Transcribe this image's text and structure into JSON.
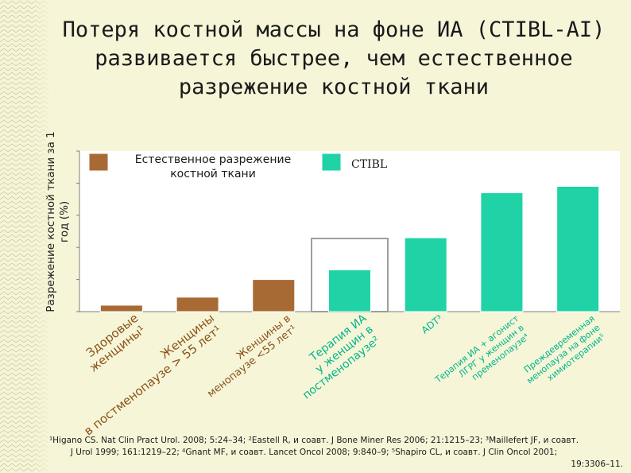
{
  "title_lines": [
    "Потеря костной массы на фоне ИА (CTIBL-AI)",
    "развивается быстрее, чем естественное",
    "разрежение костной ткани"
  ],
  "footnote_lines": [
    "¹Higano CS. Nat Clin Pract Urol. 2008; 5:24–34; ²Eastell R, и соавт. J Bone Miner Res 2006; 21:1215–23; ³Maillefert JF, и соавт.",
    "J Urol 1999; 161:1219–22; ⁴Gnant MF, и соавт. Lancet Oncol 2008; 9:840–9; ⁵Shapiro CL, и соавт. J Clin Oncol 2001;",
    "19:3306–11."
  ],
  "colors": {
    "background": "#f6f5d8",
    "natural": "#a86a35",
    "ctibl": "#1fd3a6",
    "category_text_natural": "#8a5218",
    "category_text_ctibl": "#00b58a",
    "highlight_box": "#9e9e9e"
  },
  "chart_data": {
    "type": "bar",
    "ylabel": "Разрежение костной ткани за 1 год (%)",
    "ylim": [
      0,
      10
    ],
    "y_tick_step": 2,
    "grid": false,
    "y_tick_labels_visible": false,
    "legend": {
      "placement": "top",
      "items": [
        {
          "label": "Естественное разрежение костной ткани",
          "series": "natural"
        },
        {
          "label": "CTIBL",
          "series": "ctibl"
        }
      ]
    },
    "categories": [
      {
        "label": "Здоровые женщины¹",
        "value": 0.4,
        "series": "natural"
      },
      {
        "label": "Женщины в постменопаузе > 55 лет¹",
        "value": 0.9,
        "series": "natural"
      },
      {
        "label": "Женщины в менопаузе <55 лет¹",
        "value": 2.0,
        "series": "natural"
      },
      {
        "label": "Терапия ИА у женщин в постменопаузе²",
        "value": 2.6,
        "series": "ctibl",
        "highlighted": true
      },
      {
        "label": "ADT³",
        "value": 4.6,
        "series": "ctibl"
      },
      {
        "label": "Терапия ИА + агонист ЛГРГ у женщин в пременопаузе⁴",
        "value": 7.4,
        "series": "ctibl"
      },
      {
        "label": "Преждевременная менопауза на фоне химиотерапии⁵",
        "value": 7.8,
        "series": "ctibl"
      }
    ]
  }
}
